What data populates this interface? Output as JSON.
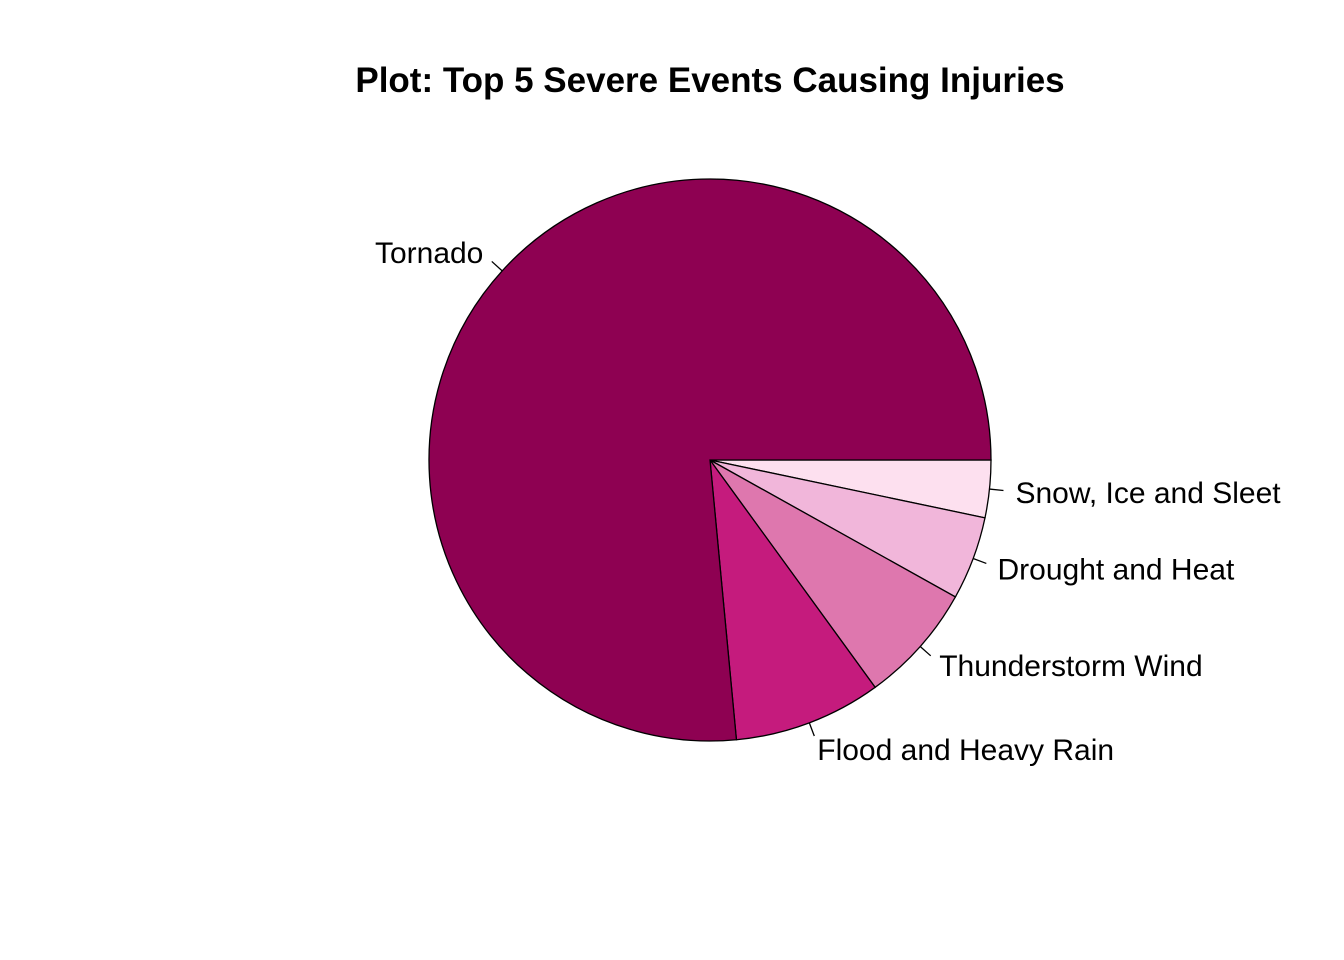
{
  "chart_data": {
    "type": "pie",
    "title": "Plot: Top 5 Severe Events Causing Injuries",
    "start_angle_deg": 0,
    "direction": "clockwise",
    "slices": [
      {
        "label": "Snow, Ice and Sleet",
        "share_pct": 3.3,
        "color": "#FDE0EF"
      },
      {
        "label": "Drought and Heat",
        "share_pct": 4.8,
        "color": "#F1B6DA"
      },
      {
        "label": "Thunderstorm Wind",
        "share_pct": 6.9,
        "color": "#DE77AE"
      },
      {
        "label": "Flood and Heavy Rain",
        "share_pct": 8.5,
        "color": "#C51B7D"
      },
      {
        "label": "Tornado",
        "share_pct": 76.5,
        "color": "#8E0152"
      }
    ]
  }
}
